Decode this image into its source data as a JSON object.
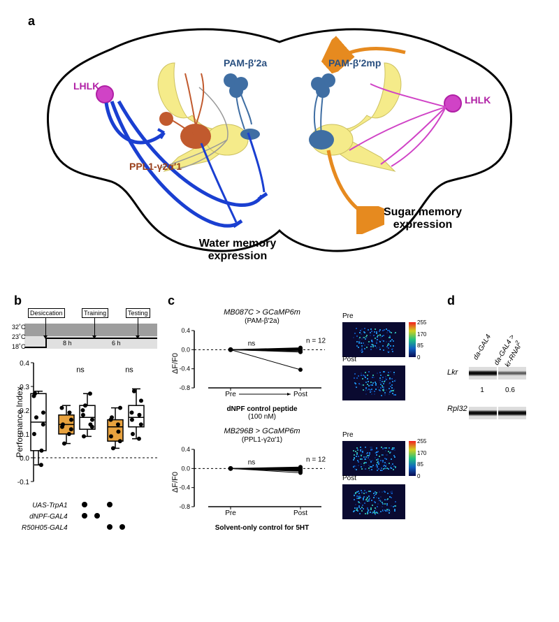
{
  "panelA": {
    "label": "a",
    "labels": {
      "lhlk_left": "LHLK",
      "lhlk_right": "LHLK",
      "pam_b2a": "PAM-β′2a",
      "pam_b2mp": "PAM-β′2mp",
      "ppl1": "PPL1-γ2α′1",
      "water": "Water memory expression",
      "sugar": "Sugar memory expression"
    },
    "colors": {
      "brain_outline": "#000000",
      "mb_fill": "#f5eb8a",
      "lhlk": "#d043c6",
      "pam": "#3f6ea3",
      "ppl1": "#c15a2e",
      "water_arrow": "#1a3fd1",
      "sugar_arrow": "#e68a1f",
      "gray_neuron": "#999999"
    }
  },
  "panelB": {
    "label": "b",
    "timeline": {
      "steps": [
        "Desiccation",
        "Training",
        "Testing"
      ],
      "temps": [
        "32˚C",
        "23˚C",
        "18˚C"
      ],
      "hours": [
        "8 h",
        "6 h"
      ]
    },
    "chart": {
      "ylabel": "Performance Index",
      "ylim": [
        -0.1,
        0.4
      ],
      "yticks": [
        -0.1,
        0.0,
        0.1,
        0.2,
        0.3,
        0.4
      ],
      "ns_labels": [
        "ns",
        "ns"
      ],
      "colors": {
        "box_white": "#ffffff",
        "box_orange": "#e8a23e",
        "stroke": "#000000",
        "ns_pos_x": [
          95,
          165
        ]
      },
      "groups": [
        {
          "x": 35,
          "fill": "#ffffff",
          "q1": 0.03,
          "med": 0.15,
          "q3": 0.27,
          "wlo": -0.03,
          "whi": 0.28,
          "points": [
            0.27,
            0.14,
            0.26,
            0.03,
            0.17,
            -0.03,
            0.1,
            0.19
          ]
        },
        {
          "x": 75,
          "fill": "#e8a23e",
          "q1": 0.1,
          "med": 0.14,
          "q3": 0.18,
          "wlo": 0.06,
          "whi": 0.22,
          "points": [
            0.14,
            0.12,
            0.21,
            0.19,
            0.06,
            0.1,
            0.13,
            0.16
          ]
        },
        {
          "x": 105,
          "fill": "#ffffff",
          "q1": 0.12,
          "med": 0.17,
          "q3": 0.22,
          "wlo": 0.09,
          "whi": 0.27,
          "points": [
            0.09,
            0.13,
            0.2,
            0.14,
            0.22,
            0.27,
            0.18,
            0.16
          ]
        },
        {
          "x": 145,
          "fill": "#e8a23e",
          "q1": 0.07,
          "med": 0.13,
          "q3": 0.16,
          "wlo": 0.04,
          "whi": 0.21,
          "points": [
            0.17,
            0.07,
            0.16,
            0.11,
            0.04,
            0.14,
            0.09,
            0.21
          ]
        },
        {
          "x": 175,
          "fill": "#ffffff",
          "q1": 0.13,
          "med": 0.17,
          "q3": 0.22,
          "wlo": 0.08,
          "whi": 0.29,
          "points": [
            0.1,
            0.14,
            0.19,
            0.18,
            0.28,
            0.08,
            0.16,
            0.24
          ]
        }
      ]
    },
    "genotypes": {
      "rows": [
        "UAS-TrpA1",
        "dNPF-GAL4",
        "R50H05-GAL4"
      ],
      "grid": [
        [
          0,
          1,
          0,
          1,
          0
        ],
        [
          0,
          1,
          1,
          0,
          0
        ],
        [
          0,
          0,
          0,
          1,
          1
        ]
      ]
    }
  },
  "panelC": {
    "label": "c",
    "sub1": {
      "title_line1": "MB087C > GCaMP6m",
      "title_line2": "(PAM-β′2a)",
      "ylabel": "ΔF/F0",
      "xlabel": "dNPF control peptide",
      "xlabel2": "(100 nM)",
      "pre": "Pre",
      "post": "Post",
      "n": "n = 12",
      "ns": "ns",
      "ylim": [
        -0.8,
        0.4
      ],
      "yticks": [
        -0.8,
        -0.4,
        0.0,
        0.4
      ],
      "lines": [
        0.0,
        0.01,
        -0.02,
        0.02,
        0.03,
        -0.01,
        0.0,
        0.04,
        -0.04,
        -0.04,
        -0.05,
        -0.42
      ],
      "img_pre": "Pre",
      "img_post": "Post",
      "colorbar_ticks": [
        0,
        85,
        170,
        255
      ]
    },
    "sub2": {
      "title_line1": "MB296B > GCaMP6m",
      "title_line2": "(PPL1-γ2α′1)",
      "ylabel": "ΔF/F0",
      "xlabel": "Solvent-only control for 5HT",
      "pre": "Pre",
      "post": "Post",
      "n": "n = 12",
      "ns": "ns",
      "ylim": [
        -0.8,
        0.4
      ],
      "yticks": [
        -0.8,
        -0.4,
        0.0,
        0.4
      ],
      "lines": [
        0.0,
        -0.02,
        0.02,
        0.01,
        -0.03,
        -0.05,
        -0.06,
        0.0,
        -0.09,
        0.03,
        -0.01,
        -0.04
      ],
      "img_pre": "Pre",
      "img_post": "Post",
      "colorbar_ticks": [
        0,
        85,
        170,
        255
      ]
    }
  },
  "panelD": {
    "label": "d",
    "lanes": [
      "da-GAL4",
      "da-GAL4 > Lkr-RNAi²"
    ],
    "row_labels": [
      "Lkr",
      "Rpl32"
    ],
    "quant": [
      "1",
      "0.6"
    ]
  }
}
